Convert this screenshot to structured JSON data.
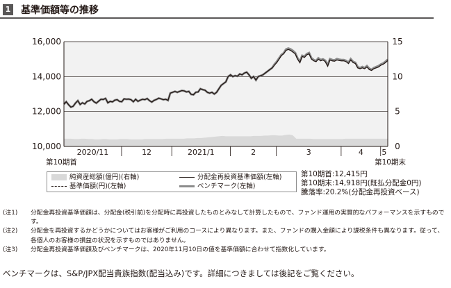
{
  "section": {
    "number": "1",
    "title": "基準価額等の推移"
  },
  "colors": {
    "header_bg": "#595757",
    "nav_area": "#d9d9d9",
    "plot_bg": "#f2f2f2",
    "line": "#231815",
    "benchmark": "#8c8c8c"
  },
  "chart_data": {
    "type": "line",
    "left_axis": {
      "ticks": [
        "10,000",
        "12,000",
        "14,000",
        "16,000"
      ],
      "min": 10000,
      "max": 16000
    },
    "right_axis": {
      "ticks": [
        "0",
        "5",
        "10",
        "15"
      ],
      "min": 0,
      "max": 15
    },
    "x_ticks": [
      "2020/11",
      "12",
      "2021/1",
      "2",
      "3",
      "4",
      "5"
    ],
    "x_start_label": "第10期首",
    "x_end_label": "第10期末",
    "grid": true,
    "series": [
      {
        "name": "分配金再投資基準価額(左軸)",
        "axis": "left",
        "style": "solid",
        "values": [
          12415,
          12560,
          12390,
          12250,
          12300,
          12480,
          12620,
          12400,
          12500,
          12430,
          12580,
          12620,
          12700,
          12560,
          12480,
          12590,
          12700,
          12690,
          12750,
          12500,
          12580,
          12550,
          12650,
          12680,
          12580,
          12560,
          12720,
          12700,
          12710,
          12680,
          12560,
          12700,
          12580,
          12650,
          12700,
          12680,
          12740,
          12620,
          12540,
          12640,
          12690,
          12760,
          12720,
          12680,
          12700,
          12640,
          13050,
          13100,
          13150,
          13100,
          13150,
          13200,
          13180,
          13120,
          13150,
          12980,
          12960,
          13100,
          13120,
          13300,
          13250,
          13220,
          13100,
          13050,
          13100,
          13000,
          13100,
          13300,
          13500,
          13600,
          13700,
          14000,
          14100,
          14000,
          14050,
          14020,
          14150,
          14100,
          14200,
          14250,
          14100,
          13900,
          14000,
          13800,
          14000,
          14050,
          14100,
          14200,
          14300,
          14400,
          14500,
          14650,
          14800,
          15000,
          15200,
          15300,
          15500,
          15550,
          15500,
          15400,
          15300,
          15000,
          14800,
          15150,
          15100,
          15250,
          15300,
          15000,
          14900,
          14850,
          15000,
          14900,
          14950,
          14850,
          14600,
          14950,
          14900,
          14880,
          14950,
          14920,
          14900,
          14900,
          14850,
          14750,
          14950,
          14800,
          14750,
          14500,
          14450,
          14500,
          14450,
          14550,
          14400,
          14350,
          14450,
          14500,
          14550,
          14650,
          14700,
          14800,
          14918
        ]
      },
      {
        "name": "ベンチマーク(左軸)",
        "axis": "left",
        "style": "solid-gray",
        "values": [
          12415,
          12560,
          12390,
          12250,
          12300,
          12480,
          12620,
          12400,
          12500,
          12430,
          12580,
          12620,
          12700,
          12560,
          12480,
          12590,
          12700,
          12690,
          12750,
          12500,
          12580,
          12550,
          12650,
          12680,
          12580,
          12560,
          12720,
          12700,
          12710,
          12680,
          12560,
          12700,
          12580,
          12650,
          12700,
          12680,
          12740,
          12620,
          12540,
          12640,
          12690,
          12760,
          12720,
          12680,
          12700,
          12640,
          13050,
          13100,
          13150,
          13100,
          13150,
          13200,
          13180,
          13120,
          13150,
          12980,
          12960,
          13100,
          13120,
          13300,
          13250,
          13220,
          13100,
          13050,
          13100,
          13000,
          13100,
          13300,
          13500,
          13600,
          13700,
          14000,
          14100,
          14000,
          14050,
          14020,
          14150,
          14100,
          14200,
          14250,
          14100,
          13900,
          14000,
          13800,
          14000,
          14050,
          14100,
          14200,
          14300,
          14400,
          14500,
          14700,
          14850,
          15050,
          15250,
          15350,
          15560,
          15620,
          15570,
          15480,
          15360,
          15060,
          14860,
          15200,
          15160,
          15300,
          15360,
          15060,
          14960,
          14900,
          15060,
          14960,
          15000,
          14920,
          14660,
          15010,
          14960,
          14940,
          15010,
          14980,
          14960,
          14960,
          14910,
          14800,
          15010,
          14850,
          14800,
          14560,
          14500,
          14560,
          14500,
          14610,
          14460,
          14400,
          14500,
          14560,
          14610,
          14700,
          14760,
          14860,
          14980
        ]
      },
      {
        "name": "基準価額(円)(左軸)",
        "axis": "left",
        "style": "dashed",
        "values": []
      },
      {
        "name": "純資産総額(億円)(右軸)",
        "axis": "right",
        "style": "area",
        "values": [
          1.1,
          1.1,
          1.1,
          1.05,
          1.05,
          1.1,
          1.1,
          1.05,
          1.05,
          1.0,
          1.0,
          1.05,
          1.05,
          1.0,
          1.0,
          1.0,
          1.05,
          1.05,
          1.05,
          1.0,
          1.0,
          1.0,
          1.0,
          1.05,
          1.05,
          1.05,
          1.05,
          1.05,
          1.05,
          1.1,
          1.1,
          1.1,
          1.1,
          1.1,
          1.1,
          1.15,
          1.15,
          1.15,
          1.2,
          1.2,
          1.25,
          1.3,
          1.35,
          1.4,
          1.45,
          1.5,
          1.45,
          1.45,
          1.45,
          1.45,
          1.45,
          1.45,
          1.45,
          1.45,
          1.5,
          1.5,
          1.5,
          1.55,
          1.55,
          1.6,
          1.6,
          1.55,
          1.55,
          1.65,
          1.7,
          1.6,
          1.1,
          1.1,
          1.1,
          1.1,
          1.1,
          1.05,
          1.05,
          1.05,
          1.05,
          1.05,
          1.05,
          1.05,
          1.05,
          1.05,
          1.1,
          1.1,
          1.1,
          1.1,
          1.1,
          1.1,
          1.1,
          1.1,
          1.1,
          1.1,
          1.1,
          1.1,
          1.1
        ]
      }
    ]
  },
  "legend": [
    {
      "label": "純資産総額(億円)(右軸)",
      "kind": "area"
    },
    {
      "label": "分配金再投資基準価額(左軸)",
      "kind": "solid"
    },
    {
      "label": "基準価額(円)(左軸)",
      "kind": "dashed"
    },
    {
      "label": "ベンチマーク(左軸)",
      "kind": "gray"
    }
  ],
  "summary": {
    "start": "第10期首:12,415円",
    "end": "第10期末:14,918円(既払分配金0円)",
    "rate": "騰落率:20.2%(分配金再投資ベース)"
  },
  "notes": [
    {
      "mark": "(注1)",
      "text": "分配金再投資基準価額は、分配金(税引前)を分配時に再投資したものとみなして計算したもので、ファンド運用の実質的なパフォーマンスを示すものです。"
    },
    {
      "mark": "(注2)",
      "text": "分配金を再投資するかどうかについてはお客様がご利用のコースにより異なります。また、ファンドの購入金額により課税条件も異なります。従って、各個人のお客様の損益の状況を示すものではありません。"
    },
    {
      "mark": "(注3)",
      "text": "分配金再投資基準価額及びベンチマークは、2020年11月10日の値を基準価額に合わせて指数化しています。"
    }
  ],
  "benchmark_note": "ベンチマークは、S&P/JPX配当貴族指数(配当込み)です。詳細につきましては後記をご覧ください。"
}
